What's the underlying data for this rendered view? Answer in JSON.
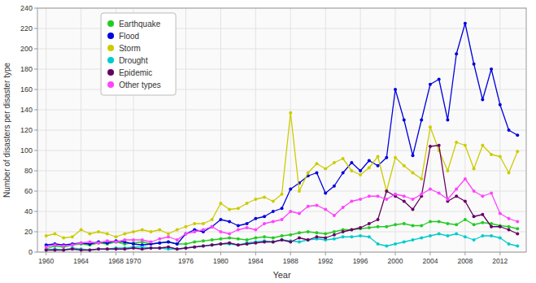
{
  "chart_data": {
    "type": "line",
    "xlabel": "Year",
    "ylabel": "Number of disasters per disaster type",
    "x": [
      1960,
      1961,
      1962,
      1963,
      1964,
      1965,
      1966,
      1967,
      1968,
      1969,
      1970,
      1971,
      1972,
      1973,
      1974,
      1975,
      1976,
      1977,
      1978,
      1979,
      1980,
      1981,
      1982,
      1983,
      1984,
      1985,
      1986,
      1987,
      1988,
      1989,
      1990,
      1991,
      1992,
      1993,
      1994,
      1995,
      1996,
      1997,
      1998,
      1999,
      2000,
      2001,
      2002,
      2003,
      2004,
      2005,
      2006,
      2007,
      2008,
      2009,
      2010,
      2011,
      2012,
      2013,
      2014
    ],
    "series": [
      {
        "name": "Earthquake",
        "color": "#22cc22",
        "values": [
          3,
          6,
          5,
          7,
          8,
          7,
          9,
          8,
          10,
          8,
          9,
          10,
          8,
          9,
          10,
          8,
          8,
          10,
          11,
          12,
          13,
          14,
          13,
          12,
          14,
          15,
          14,
          16,
          17,
          19,
          20,
          19,
          18,
          20,
          22,
          22,
          23,
          24,
          25,
          25,
          27,
          28,
          26,
          26,
          30,
          30,
          28,
          27,
          32,
          27,
          29,
          28,
          26,
          25,
          23
        ]
      },
      {
        "name": "Flood",
        "color": "#0000dd",
        "values": [
          7,
          8,
          7,
          8,
          9,
          8,
          10,
          9,
          11,
          10,
          8,
          7,
          8,
          9,
          10,
          8,
          18,
          22,
          20,
          25,
          32,
          30,
          26,
          28,
          33,
          35,
          40,
          43,
          62,
          68,
          75,
          78,
          58,
          65,
          78,
          88,
          80,
          90,
          85,
          93,
          160,
          130,
          95,
          130,
          165,
          170,
          130,
          195,
          225,
          185,
          150,
          180,
          145,
          120,
          115
        ]
      },
      {
        "name": "Storm",
        "color": "#cccc00",
        "values": [
          16,
          18,
          14,
          15,
          22,
          18,
          20,
          18,
          15,
          18,
          20,
          22,
          20,
          22,
          18,
          22,
          25,
          28,
          28,
          32,
          48,
          42,
          43,
          48,
          52,
          54,
          50,
          57,
          137,
          60,
          78,
          87,
          82,
          88,
          92,
          80,
          76,
          83,
          94,
          60,
          93,
          85,
          78,
          72,
          123,
          100,
          80,
          108,
          105,
          82,
          105,
          96,
          94,
          78,
          99
        ]
      },
      {
        "name": "Drought",
        "color": "#00cccc",
        "values": [
          2,
          3,
          2,
          4,
          3,
          2,
          3,
          3,
          4,
          4,
          5,
          5,
          4,
          4,
          3,
          3,
          4,
          5,
          6,
          7,
          8,
          8,
          7,
          9,
          10,
          11,
          10,
          12,
          11,
          10,
          12,
          13,
          12,
          13,
          15,
          15,
          16,
          15,
          8,
          6,
          8,
          10,
          12,
          14,
          16,
          18,
          16,
          18,
          15,
          12,
          16,
          16,
          14,
          8,
          6
        ]
      },
      {
        "name": "Epidemic",
        "color": "#660066",
        "values": [
          2,
          2,
          2,
          3,
          2,
          2,
          3,
          3,
          3,
          3,
          4,
          3,
          4,
          4,
          5,
          3,
          4,
          5,
          6,
          7,
          8,
          9,
          7,
          8,
          9,
          10,
          10,
          12,
          10,
          14,
          12,
          15,
          14,
          17,
          20,
          22,
          24,
          28,
          32,
          60,
          55,
          50,
          42,
          55,
          104,
          105,
          50,
          55,
          50,
          35,
          37,
          25,
          25,
          22,
          18
        ]
      },
      {
        "name": "Other types",
        "color": "#ff44ff",
        "values": [
          5,
          7,
          6,
          7,
          9,
          10,
          9,
          11,
          10,
          12,
          12,
          12,
          10,
          13,
          15,
          12,
          18,
          20,
          22,
          25,
          20,
          18,
          22,
          24,
          22,
          28,
          30,
          32,
          40,
          38,
          45,
          46,
          42,
          36,
          44,
          50,
          52,
          55,
          55,
          52,
          57,
          55,
          52,
          57,
          62,
          58,
          52,
          62,
          72,
          60,
          55,
          58,
          38,
          33,
          30
        ]
      }
    ],
    "xlim": [
      1959,
      2015
    ],
    "xticks": [
      1960,
      1964,
      1968,
      1970,
      1976,
      1980,
      1984,
      1988,
      1992,
      1996,
      2000,
      2004,
      2008,
      2012
    ],
    "ylim": [
      0,
      240
    ],
    "yticks": [
      0,
      20,
      40,
      60,
      80,
      100,
      120,
      140,
      160,
      180,
      200,
      220,
      240
    ],
    "grid": true,
    "legend": "upper left",
    "marker": "circle"
  }
}
